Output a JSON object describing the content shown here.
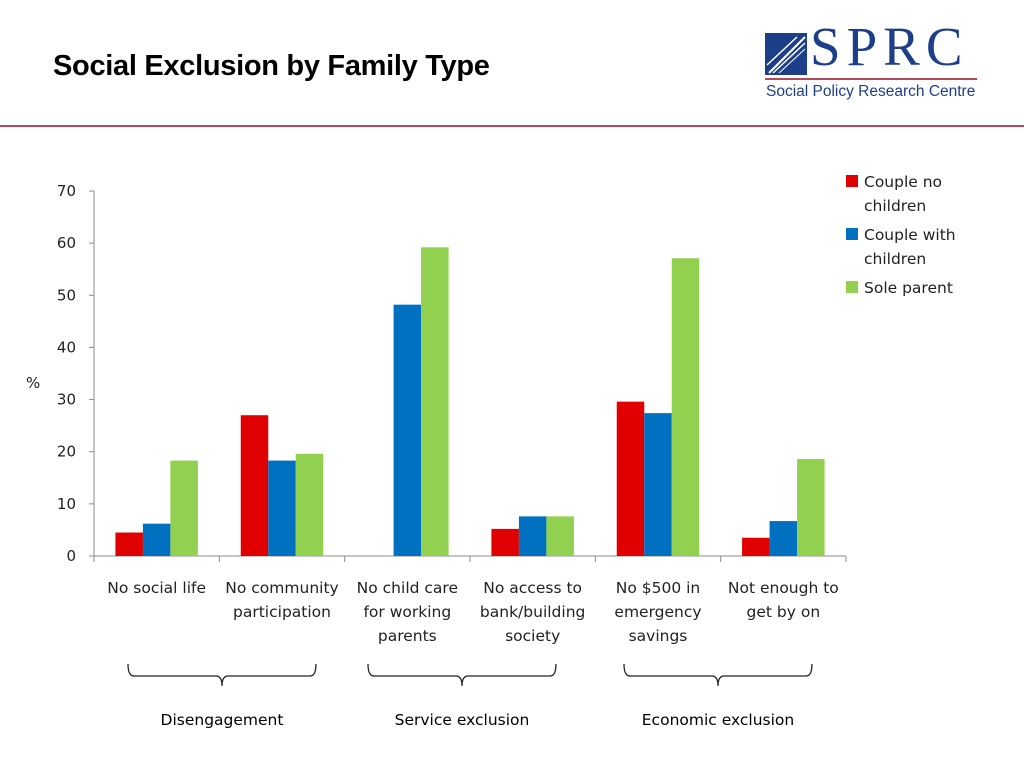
{
  "slide": {
    "title": "Social Exclusion by Family Type"
  },
  "logo": {
    "wordmark": "SPRC",
    "subtitle": "Social Policy Research Centre"
  },
  "colors": {
    "couple_no_children": "#e00000",
    "couple_with_children": "#0070c0",
    "sole_parent": "#92d050",
    "brand_blue": "#1d3f8a",
    "rule": "#b3495a"
  },
  "chart_data": {
    "type": "bar",
    "ylabel": "%",
    "ylim": [
      0,
      70
    ],
    "yticks": [
      "0",
      "10",
      "20",
      "30",
      "40",
      "50",
      "60",
      "70"
    ],
    "grid": false,
    "legend_position": "top-right",
    "categories": [
      "No social life",
      "No community participation",
      "No child care for working parents",
      "No access to bank/building society",
      "No $500 in emergency savings",
      "Not enough to get by on"
    ],
    "category_lines": [
      [
        "No social life"
      ],
      [
        "No community",
        "participation"
      ],
      [
        "No child care",
        "for working",
        "parents"
      ],
      [
        "No access to",
        "bank/building",
        "society"
      ],
      [
        "No $500 in",
        "emergency",
        "savings"
      ],
      [
        "Not enough to",
        "get by on"
      ]
    ],
    "series": [
      {
        "name": "Couple no children",
        "legend_lines": [
          "Couple no",
          "children"
        ],
        "color": "#e00000",
        "values": [
          4.5,
          27,
          0,
          5.2,
          29.6,
          3.5
        ]
      },
      {
        "name": "Couple with children",
        "legend_lines": [
          "Couple with",
          "children"
        ],
        "color": "#0070c0",
        "values": [
          6.2,
          18.3,
          48.2,
          7.6,
          27.4,
          6.7
        ]
      },
      {
        "name": "Sole parent",
        "legend_lines": [
          "Sole parent"
        ],
        "color": "#92d050",
        "values": [
          18.3,
          19.6,
          59.2,
          7.6,
          57.1,
          18.6
        ]
      }
    ],
    "groups": [
      {
        "label": "Disengagement",
        "categories": [
          0,
          1
        ]
      },
      {
        "label": "Service exclusion",
        "categories": [
          2,
          3
        ]
      },
      {
        "label": "Economic exclusion",
        "categories": [
          4,
          5
        ]
      }
    ]
  }
}
